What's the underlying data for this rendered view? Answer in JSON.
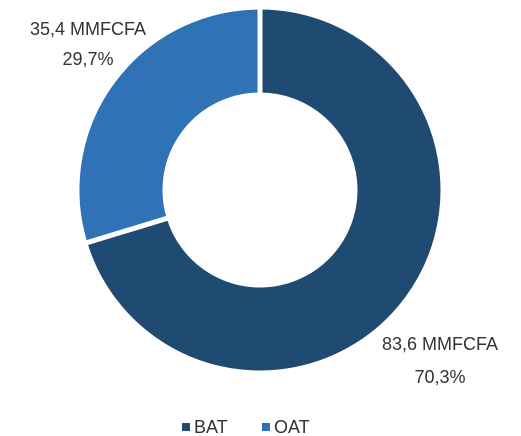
{
  "chart_data": {
    "type": "donut",
    "categories": [
      "BAT",
      "OAT"
    ],
    "values": [
      83.6,
      35.4
    ],
    "value_labels": [
      "83,6 MMFCFA",
      "35,4 MMFCFA"
    ],
    "percents": [
      70.3,
      29.7
    ],
    "percent_labels": [
      "70,3%",
      "29,7%"
    ],
    "colors": [
      "#1f4a72",
      "#2f72b5"
    ],
    "legend": "bottom"
  }
}
